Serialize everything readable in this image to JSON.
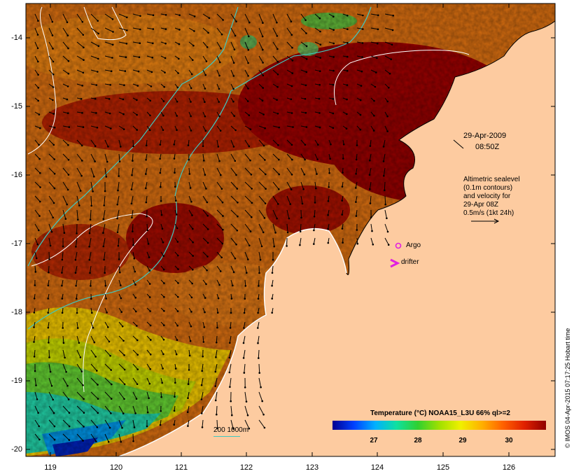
{
  "map": {
    "lat_ticks": [
      "-14",
      "-15",
      "-16",
      "-17",
      "-18",
      "-19",
      "-20"
    ],
    "lon_ticks": [
      "119",
      "120",
      "121",
      "122",
      "123",
      "124",
      "125",
      "126"
    ],
    "date": "29-Apr-2009",
    "time": "08:50Z",
    "legend_note": [
      "Altimetric sealevel",
      "(0.1m contours)",
      "and velocity for",
      "29-Apr 08Z",
      "0.5m/s (1kt 24h)"
    ],
    "argo_label": "Argo",
    "drifter_label": "drifter",
    "scale_label": "200  1000m",
    "credit": "© IMOS 04-Apr-2015 07:17:25 Hobart time",
    "colorbar": {
      "title": "Temperature (°C) NOAA15_L3U 66% ql>=2",
      "ticks": [
        "27",
        "28",
        "29",
        "30"
      ]
    },
    "colors": {
      "land": "#fdcba0",
      "contour_200": "#40c8c0",
      "contour_sealevel": "#ffffff",
      "marker": "#e020e0"
    }
  }
}
